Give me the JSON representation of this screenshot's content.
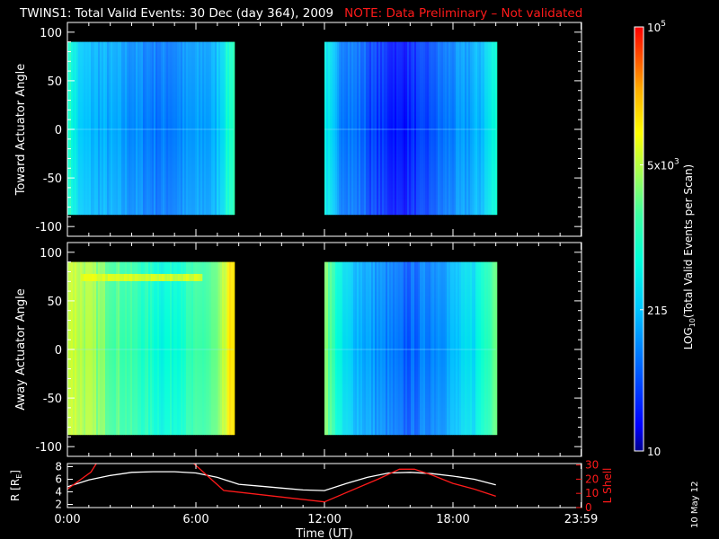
{
  "title": {
    "main": "TWINS1: Total Valid Events: 30 Dec (day 364), 2009",
    "note": "NOTE: Data Preliminary – Not validated"
  },
  "datestamp": "10 May 12",
  "colors": {
    "background": "#000000",
    "axis": "#ffffff",
    "note": "#ff1a1a",
    "r_line": "#ffffff",
    "lshell_line": "#ff1a1a"
  },
  "chart_data": [
    {
      "type": "heatmap",
      "panel": "toward",
      "ylabel": "Toward Actuator Angle",
      "ylim": [
        -110,
        110
      ],
      "yticks": [
        100,
        50,
        0,
        -50,
        -100
      ],
      "xlim": [
        0,
        24
      ],
      "data_spans_hours": [
        [
          0.0,
          7.75
        ],
        [
          12.0,
          20.0
        ]
      ],
      "angle_range": [
        -88,
        90
      ]
    },
    {
      "type": "heatmap",
      "panel": "away",
      "ylabel": "Away Actuator Angle",
      "ylim": [
        -110,
        110
      ],
      "yticks": [
        100,
        50,
        0,
        -50,
        -100
      ],
      "xlim": [
        0,
        24
      ],
      "data_spans_hours": [
        [
          0.0,
          7.75
        ],
        [
          12.0,
          20.0
        ]
      ],
      "angle_range": [
        -88,
        90
      ]
    },
    {
      "type": "line",
      "panel": "orbit",
      "xlabel": "Time (UT)",
      "xticks": [
        "0:00",
        "6:00",
        "12:00",
        "18:00",
        "23:59"
      ],
      "xtick_hours": [
        0,
        6,
        12,
        18,
        23.98
      ],
      "xlim": [
        0,
        24
      ],
      "left_axis": {
        "label": "R [R",
        "label_sub": "E",
        "label_end": "]",
        "ylim": [
          1.5,
          8.5
        ],
        "ticks": [
          "8",
          "6",
          "4",
          "2"
        ]
      },
      "right_axis": {
        "label": "L Shell",
        "ylim": [
          0,
          31
        ],
        "ticks": [
          "30",
          "20",
          "10",
          "0"
        ]
      },
      "series": [
        {
          "axis": "left",
          "color": "white",
          "x": [
            0,
            1,
            2,
            3,
            4,
            5,
            6,
            7,
            8,
            9,
            10,
            11,
            12,
            13,
            14,
            15,
            16,
            17,
            18,
            19,
            20
          ],
          "y": [
            4.8,
            5.9,
            6.6,
            7.1,
            7.2,
            7.2,
            7.0,
            6.3,
            5.2,
            4.9,
            4.6,
            4.3,
            4.2,
            5.3,
            6.3,
            7.0,
            7.1,
            6.9,
            6.5,
            6.0,
            5.1
          ]
        },
        {
          "axis": "right",
          "color": "red",
          "x": [
            0,
            1.1,
            1.35,
            1.6,
            5.6,
            5.9,
            7.3,
            12.0,
            14.5,
            15.5,
            16.2,
            17.0,
            18.0,
            19.0,
            20.0
          ],
          "y": [
            13,
            25,
            31,
            33,
            33,
            31,
            12,
            4,
            20,
            27,
            27,
            23,
            17,
            13,
            8
          ]
        }
      ]
    }
  ],
  "colorbar": {
    "label_main": "LOG",
    "label_sub": "10",
    "label_rest": "(Total Valid  Events per Scan)",
    "ticks": [
      {
        "base": "10",
        "sup": "5",
        "value": 100000
      },
      {
        "base": "5x10",
        "sup": "3",
        "value": 5000
      },
      {
        "base": "215",
        "sup": "",
        "value": 215
      },
      {
        "base": "10",
        "sup": "",
        "value": 10
      }
    ],
    "range": [
      10,
      100000
    ],
    "scale": "log"
  }
}
